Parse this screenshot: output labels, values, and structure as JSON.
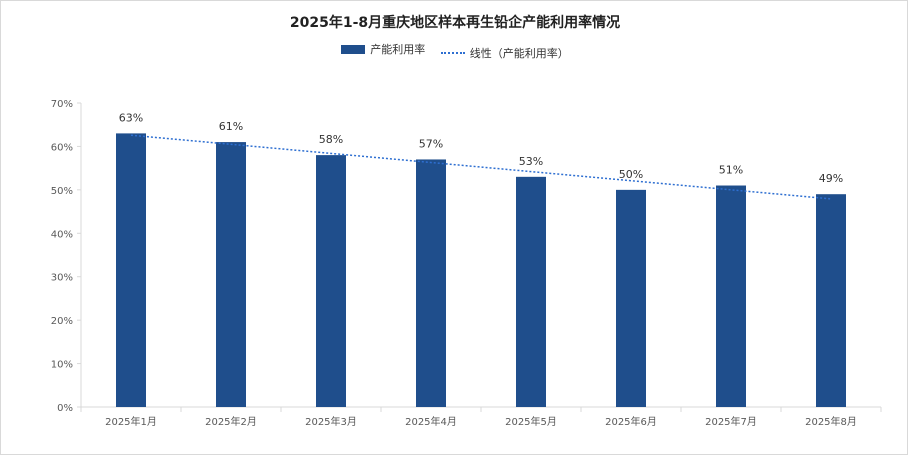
{
  "chart_data": {
    "type": "bar",
    "title": "2025年1-8月重庆地区样本再生铅企产能利用率情况",
    "categories": [
      "2025年1月",
      "2025年2月",
      "2025年3月",
      "2025年4月",
      "2025年5月",
      "2025年6月",
      "2025年7月",
      "2025年8月"
    ],
    "series": [
      {
        "name": "产能利用率",
        "values": [
          63,
          61,
          58,
          57,
          53,
          50,
          51,
          49
        ],
        "color": "#1f4e8c"
      }
    ],
    "trendline": {
      "name": "线性（产能利用率）",
      "type": "linear",
      "color": "#2e6fd1"
    },
    "data_labels": [
      "63%",
      "61%",
      "58%",
      "57%",
      "53%",
      "50%",
      "51%",
      "49%"
    ],
    "y_ticks": [
      "0%",
      "10%",
      "20%",
      "30%",
      "40%",
      "50%",
      "60%",
      "70%"
    ],
    "ylim": [
      0,
      70
    ],
    "y_unit": "%",
    "grid": false,
    "legend_position": "top"
  }
}
